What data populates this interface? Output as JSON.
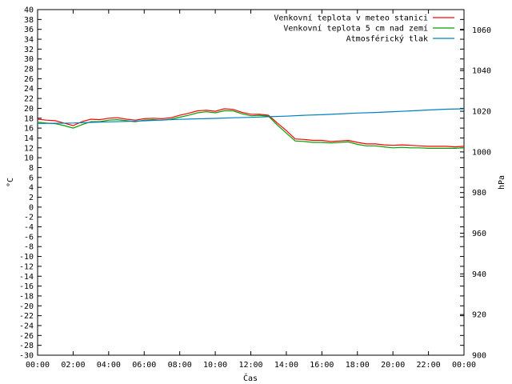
{
  "chart_data": {
    "type": "line",
    "xlabel": "Čas",
    "ylabel": "°C",
    "y2label": "hPa",
    "x_ticks": [
      "00:00",
      "02:00",
      "04:00",
      "06:00",
      "08:00",
      "10:00",
      "12:00",
      "14:00",
      "16:00",
      "18:00",
      "20:00",
      "22:00",
      "00:00"
    ],
    "x_range_hours": [
      0,
      24
    ],
    "ylim": [
      -30,
      40
    ],
    "y_ticks": [
      40,
      38,
      36,
      34,
      32,
      30,
      28,
      26,
      24,
      22,
      20,
      18,
      16,
      14,
      12,
      10,
      8,
      6,
      4,
      2,
      0,
      -2,
      -4,
      -6,
      -8,
      -10,
      -12,
      -14,
      -16,
      -18,
      -20,
      -22,
      -24,
      -26,
      -28,
      -30
    ],
    "y2lim": [
      900,
      1070
    ],
    "y2_ticks": [
      1060,
      1040,
      1020,
      1000,
      980,
      960,
      940,
      920,
      900
    ],
    "grid": false,
    "legend_position": "top-right",
    "series": [
      {
        "name": "Venkovní teplota v meteo stanici",
        "color": "#ff0000",
        "axis": "left",
        "points": [
          [
            0,
            17.8
          ],
          [
            0.5,
            17.6
          ],
          [
            1,
            17.5
          ],
          [
            1.5,
            17.0
          ],
          [
            2,
            16.5
          ],
          [
            2.5,
            17.3
          ],
          [
            3,
            17.8
          ],
          [
            3.5,
            17.7
          ],
          [
            4,
            18.0
          ],
          [
            4.5,
            18.1
          ],
          [
            5,
            17.8
          ],
          [
            5.5,
            17.6
          ],
          [
            6,
            17.9
          ],
          [
            6.5,
            18.0
          ],
          [
            7,
            17.9
          ],
          [
            7.5,
            18.1
          ],
          [
            8,
            18.6
          ],
          [
            8.5,
            19.0
          ],
          [
            9,
            19.5
          ],
          [
            9.5,
            19.6
          ],
          [
            10,
            19.4
          ],
          [
            10.5,
            19.9
          ],
          [
            11,
            19.8
          ],
          [
            11.5,
            19.2
          ],
          [
            12,
            18.8
          ],
          [
            12.5,
            18.8
          ],
          [
            13,
            18.6
          ],
          [
            13.5,
            17.0
          ],
          [
            14,
            15.5
          ],
          [
            14.5,
            13.8
          ],
          [
            15,
            13.7
          ],
          [
            15.5,
            13.5
          ],
          [
            16,
            13.5
          ],
          [
            16.5,
            13.3
          ],
          [
            17,
            13.4
          ],
          [
            17.5,
            13.5
          ],
          [
            18,
            13.1
          ],
          [
            18.5,
            12.8
          ],
          [
            19,
            12.8
          ],
          [
            19.5,
            12.6
          ],
          [
            20,
            12.5
          ],
          [
            20.5,
            12.6
          ],
          [
            21,
            12.5
          ],
          [
            21.5,
            12.4
          ],
          [
            22,
            12.3
          ],
          [
            22.5,
            12.3
          ],
          [
            23,
            12.3
          ],
          [
            23.5,
            12.2
          ],
          [
            24,
            12.3
          ]
        ]
      },
      {
        "name": "Venkovní teplota 5 cm nad zemí",
        "color": "#00a000",
        "axis": "left",
        "points": [
          [
            0,
            17.2
          ],
          [
            0.5,
            17.0
          ],
          [
            1,
            16.9
          ],
          [
            1.5,
            16.5
          ],
          [
            2,
            16.0
          ],
          [
            2.5,
            16.7
          ],
          [
            3,
            17.3
          ],
          [
            3.5,
            17.3
          ],
          [
            4,
            17.6
          ],
          [
            4.5,
            17.7
          ],
          [
            5,
            17.5
          ],
          [
            5.5,
            17.3
          ],
          [
            6,
            17.6
          ],
          [
            6.5,
            17.7
          ],
          [
            7,
            17.6
          ],
          [
            7.5,
            17.8
          ],
          [
            8,
            18.2
          ],
          [
            8.5,
            18.6
          ],
          [
            9,
            19.1
          ],
          [
            9.5,
            19.3
          ],
          [
            10,
            19.1
          ],
          [
            10.5,
            19.5
          ],
          [
            11,
            19.5
          ],
          [
            11.5,
            18.9
          ],
          [
            12,
            18.5
          ],
          [
            12.5,
            18.6
          ],
          [
            13,
            18.4
          ],
          [
            13.5,
            16.6
          ],
          [
            14,
            15.0
          ],
          [
            14.5,
            13.4
          ],
          [
            15,
            13.3
          ],
          [
            15.5,
            13.1
          ],
          [
            16,
            13.1
          ],
          [
            16.5,
            13.0
          ],
          [
            17,
            13.1
          ],
          [
            17.5,
            13.2
          ],
          [
            18,
            12.7
          ],
          [
            18.5,
            12.4
          ],
          [
            19,
            12.4
          ],
          [
            19.5,
            12.2
          ],
          [
            20,
            12.0
          ],
          [
            20.5,
            12.1
          ],
          [
            21,
            12.0
          ],
          [
            21.5,
            12.0
          ],
          [
            22,
            11.9
          ],
          [
            22.5,
            11.9
          ],
          [
            23,
            11.9
          ],
          [
            23.5,
            11.9
          ],
          [
            24,
            12.0
          ]
        ]
      },
      {
        "name": "Atmosférický tlak",
        "color": "#0080c0",
        "axis": "right",
        "points": [
          [
            0,
            1014.0
          ],
          [
            1,
            1014.1
          ],
          [
            2,
            1014.2
          ],
          [
            3,
            1014.5
          ],
          [
            4,
            1014.8
          ],
          [
            5,
            1015.0
          ],
          [
            6,
            1015.3
          ],
          [
            7,
            1015.7
          ],
          [
            8,
            1016.0
          ],
          [
            9,
            1016.3
          ],
          [
            10,
            1016.5
          ],
          [
            11,
            1016.8
          ],
          [
            12,
            1017.0
          ],
          [
            13,
            1017.3
          ],
          [
            14,
            1017.6
          ],
          [
            15,
            1018.0
          ],
          [
            16,
            1018.3
          ],
          [
            17,
            1018.7
          ],
          [
            18,
            1019.1
          ],
          [
            19,
            1019.4
          ],
          [
            20,
            1019.8
          ],
          [
            21,
            1020.2
          ],
          [
            22,
            1020.6
          ],
          [
            23,
            1021.0
          ],
          [
            24,
            1021.2
          ]
        ]
      }
    ]
  }
}
